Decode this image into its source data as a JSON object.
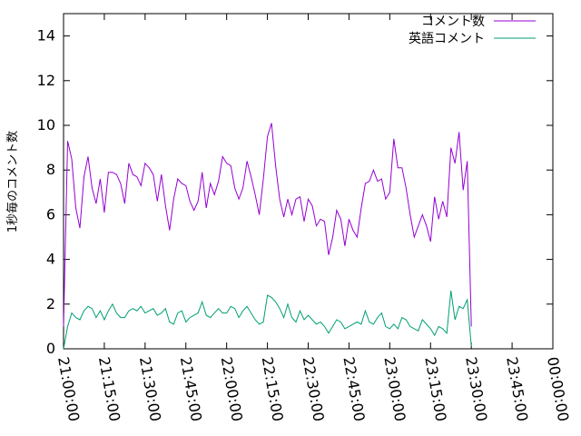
{
  "chart_data": {
    "type": "line",
    "title": "",
    "xlabel": "",
    "ylabel": "1秒毎のコメント数",
    "x_ticks": [
      "21:00:00",
      "21:15:00",
      "21:30:00",
      "21:45:00",
      "22:00:00",
      "22:15:00",
      "22:30:00",
      "22:45:00",
      "23:00:00",
      "23:15:00",
      "23:30:00",
      "23:45:00",
      "00:00:00"
    ],
    "y_ticks": [
      "0",
      "2",
      "4",
      "6",
      "8",
      "10",
      "12",
      "14"
    ],
    "xlim": [
      "21:00:00",
      "00:00:00"
    ],
    "ylim": [
      0,
      15
    ],
    "grid": false,
    "legend": "top-right",
    "colors": {
      "series_1": "#9400d3",
      "series_2": "#009e73"
    },
    "x_start": "21:00:00",
    "x_step": "00:01:30",
    "series": [
      {
        "name": "コメント数",
        "values": [
          1.0,
          9.3,
          8.5,
          6.3,
          5.4,
          7.7,
          8.6,
          7.2,
          6.5,
          7.6,
          6.1,
          7.9,
          7.9,
          7.8,
          7.4,
          6.5,
          8.3,
          7.8,
          7.7,
          7.3,
          8.3,
          8.1,
          7.8,
          6.6,
          7.8,
          6.4,
          5.3,
          6.7,
          7.6,
          7.4,
          7.3,
          6.6,
          6.2,
          6.6,
          7.9,
          6.3,
          7.4,
          6.9,
          7.5,
          8.6,
          8.3,
          8.2,
          7.2,
          6.7,
          7.2,
          8.4,
          7.7,
          6.9,
          6.0,
          7.6,
          9.5,
          10.1,
          8.2,
          6.7,
          5.9,
          6.7,
          6.0,
          6.7,
          6.8,
          5.7,
          6.7,
          6.4,
          5.5,
          5.8,
          5.7,
          4.2,
          5.0,
          6.2,
          5.8,
          4.6,
          5.8,
          5.3,
          5.0,
          6.3,
          7.4,
          7.5,
          8.0,
          7.5,
          7.6,
          6.7,
          7.0,
          9.4,
          8.1,
          8.1,
          7.2,
          6.0,
          5.0,
          5.5,
          6.0,
          5.5,
          4.8,
          6.8,
          5.8,
          6.6,
          5.9,
          9.0,
          8.3,
          9.7,
          7.1,
          8.4,
          1.0
        ]
      },
      {
        "name": "英語コメント",
        "values": [
          0.0,
          1.0,
          1.6,
          1.4,
          1.3,
          1.7,
          1.9,
          1.8,
          1.4,
          1.7,
          1.3,
          1.7,
          2.0,
          1.6,
          1.4,
          1.4,
          1.7,
          1.8,
          1.7,
          1.9,
          1.6,
          1.7,
          1.8,
          1.5,
          1.6,
          1.8,
          1.2,
          1.1,
          1.6,
          1.7,
          1.2,
          1.4,
          1.5,
          1.6,
          2.1,
          1.5,
          1.4,
          1.6,
          1.8,
          1.6,
          1.6,
          1.9,
          1.8,
          1.4,
          1.7,
          1.9,
          1.6,
          1.3,
          1.1,
          1.2,
          2.4,
          2.3,
          2.1,
          1.8,
          1.4,
          2.0,
          1.4,
          1.2,
          1.7,
          1.3,
          1.5,
          1.3,
          1.1,
          1.2,
          1.0,
          0.7,
          1.0,
          1.3,
          1.2,
          0.9,
          1.0,
          1.1,
          1.2,
          1.1,
          1.7,
          1.2,
          1.1,
          1.4,
          1.6,
          1.0,
          0.9,
          1.1,
          0.9,
          1.4,
          1.3,
          1.0,
          0.9,
          0.8,
          1.3,
          1.1,
          0.9,
          0.6,
          1.0,
          0.9,
          0.7,
          2.6,
          1.3,
          1.9,
          1.8,
          2.2,
          0.1
        ]
      }
    ]
  }
}
